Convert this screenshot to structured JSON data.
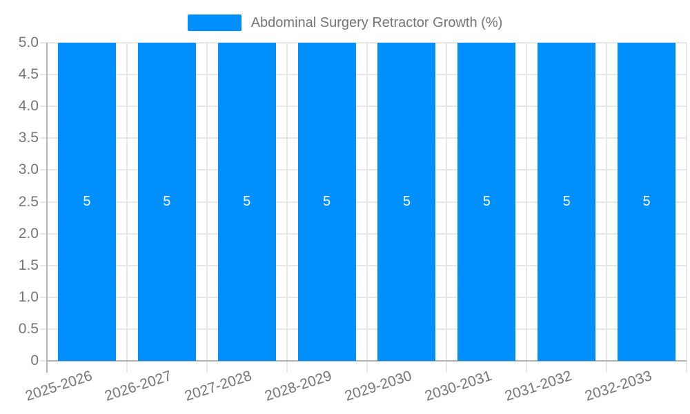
{
  "chart_data": {
    "type": "bar",
    "title": "Abdominal Surgery Retractor Growth (%)",
    "categories": [
      "2025-2026",
      "2026-2027",
      "2027-2028",
      "2028-2029",
      "2029-2030",
      "2030-2031",
      "2031-2032",
      "2032-2033"
    ],
    "values": [
      5,
      5,
      5,
      5,
      5,
      5,
      5,
      5
    ],
    "ylim": [
      0,
      5
    ],
    "ytick_labels": [
      "0",
      "0.5",
      "1.0",
      "1.5",
      "2.0",
      "2.5",
      "3.0",
      "3.5",
      "4.0",
      "4.5",
      "5.0"
    ],
    "legend_position": "top",
    "grid": true,
    "colors": {
      "bar": "#008FFB",
      "axis_label": "#757575",
      "gridline": "#e7e7e7",
      "axis_line": "#b4b4b4",
      "bar_label": "#ffffff"
    }
  }
}
